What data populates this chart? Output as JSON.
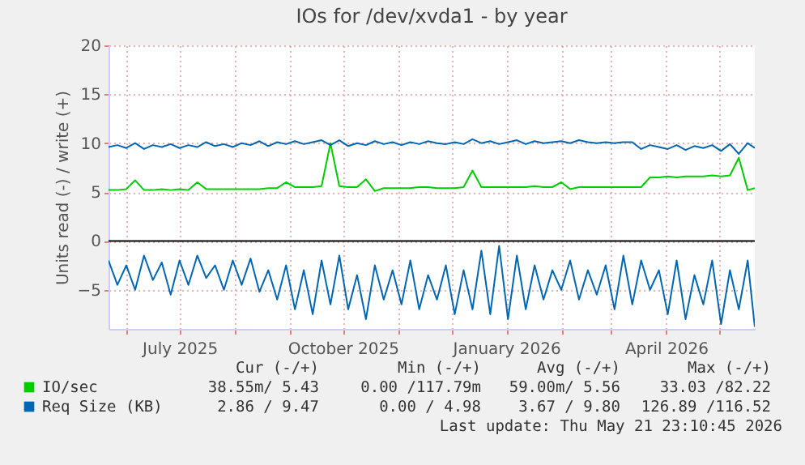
{
  "chart_data": {
    "type": "line",
    "title": "IOs for /dev/xvda1 - by year",
    "ylabel": "Units read (-) / write (+)",
    "x": [
      "2025-05-22",
      "2025-05-27",
      "2025-06-01",
      "2025-06-06",
      "2025-06-11",
      "2025-06-16",
      "2025-06-21",
      "2025-06-26",
      "2025-07-01",
      "2025-07-06",
      "2025-07-11",
      "2025-07-16",
      "2025-07-21",
      "2025-07-26",
      "2025-07-31",
      "2025-08-05",
      "2025-08-10",
      "2025-08-15",
      "2025-08-20",
      "2025-08-25",
      "2025-08-30",
      "2025-09-04",
      "2025-09-09",
      "2025-09-14",
      "2025-09-19",
      "2025-09-24",
      "2025-09-29",
      "2025-10-04",
      "2025-10-09",
      "2025-10-14",
      "2025-10-19",
      "2025-10-24",
      "2025-10-29",
      "2025-11-03",
      "2025-11-08",
      "2025-11-13",
      "2025-11-18",
      "2025-11-23",
      "2025-11-28",
      "2025-12-03",
      "2025-12-08",
      "2025-12-13",
      "2025-12-18",
      "2025-12-23",
      "2025-12-28",
      "2026-01-02",
      "2026-01-07",
      "2026-01-12",
      "2026-01-17",
      "2026-01-22",
      "2026-01-27",
      "2026-02-01",
      "2026-02-06",
      "2026-02-11",
      "2026-02-16",
      "2026-02-21",
      "2026-02-26",
      "2026-03-03",
      "2026-03-08",
      "2026-03-13",
      "2026-03-18",
      "2026-03-23",
      "2026-03-28",
      "2026-04-02",
      "2026-04-07",
      "2026-04-12",
      "2026-04-17",
      "2026-04-22",
      "2026-04-27",
      "2026-05-02",
      "2026-05-07",
      "2026-05-12",
      "2026-05-17",
      "2026-05-21"
    ],
    "series": [
      {
        "name": "IO/sec",
        "color": "#00cc00",
        "values": [
          5.2,
          5.2,
          5.3,
          6.2,
          5.2,
          5.2,
          5.3,
          5.2,
          5.3,
          5.2,
          6.0,
          5.3,
          5.3,
          5.3,
          5.3,
          5.3,
          5.3,
          5.3,
          5.4,
          5.4,
          6.0,
          5.5,
          5.5,
          5.5,
          5.6,
          10.0,
          5.6,
          5.5,
          5.5,
          6.3,
          5.1,
          5.4,
          5.4,
          5.4,
          5.4,
          5.5,
          5.5,
          5.4,
          5.4,
          5.4,
          5.5,
          7.2,
          5.5,
          5.5,
          5.5,
          5.5,
          5.5,
          5.5,
          5.6,
          5.5,
          5.5,
          6.0,
          5.3,
          5.5,
          5.5,
          5.5,
          5.5,
          5.5,
          5.5,
          5.5,
          5.5,
          6.5,
          6.5,
          6.6,
          6.5,
          6.6,
          6.6,
          6.6,
          6.7,
          6.6,
          6.7,
          8.5,
          5.2,
          5.4
        ]
      },
      {
        "name": "Req Size (KB)",
        "color": "#0066b3",
        "values": [
          9.6,
          9.8,
          9.5,
          10.0,
          9.4,
          9.8,
          9.6,
          9.9,
          9.5,
          9.8,
          9.6,
          10.1,
          9.7,
          9.9,
          9.6,
          10.0,
          9.8,
          10.2,
          9.7,
          10.1,
          9.9,
          10.2,
          9.9,
          10.1,
          10.3,
          9.8,
          10.3,
          9.7,
          10.0,
          9.8,
          10.2,
          9.9,
          10.1,
          9.8,
          10.1,
          9.9,
          10.2,
          10.0,
          9.9,
          10.1,
          9.9,
          10.4,
          10.0,
          10.2,
          9.9,
          10.1,
          10.3,
          9.9,
          10.2,
          10.0,
          10.1,
          10.2,
          10.0,
          10.3,
          10.1,
          10.0,
          10.1,
          10.0,
          10.1,
          10.1,
          9.4,
          9.8,
          9.6,
          9.4,
          9.8,
          9.3,
          9.7,
          9.5,
          9.8,
          9.2,
          9.9,
          8.9,
          10.0,
          9.5
        ]
      },
      {
        "color": "#0066b3",
        "values": [
          -2.0,
          -4.5,
          -2.5,
          -5.0,
          -1.5,
          -4.0,
          -2.2,
          -5.5,
          -2.0,
          -4.5,
          -1.5,
          -3.8,
          -2.5,
          -5.0,
          -2.0,
          -4.5,
          -1.8,
          -5.2,
          -3.0,
          -6.0,
          -2.5,
          -7.0,
          -3.0,
          -7.5,
          -2.0,
          -6.5,
          -1.5,
          -7.0,
          -3.5,
          -8.0,
          -2.5,
          -6.0,
          -3.0,
          -6.5,
          -2.0,
          -7.0,
          -3.5,
          -6.0,
          -2.5,
          -7.5,
          -3.0,
          -7.0,
          -1.0,
          -7.5,
          -0.5,
          -8.0,
          -1.5,
          -7.0,
          -2.5,
          -6.0,
          -3.0,
          -5.0,
          -2.0,
          -6.0,
          -3.0,
          -5.5,
          -2.5,
          -7.0,
          -1.5,
          -6.5,
          -2.0,
          -5.0,
          -3.0,
          -7.5,
          -2.0,
          -8.0,
          -3.5,
          -6.5,
          -2.0,
          -8.5,
          -3.0,
          -7.0,
          -2.0,
          -8.8
        ]
      }
    ],
    "xlim": [
      "2025-05-22",
      "2026-05-21"
    ],
    "xticks": [
      {
        "value": "2025-06-01",
        "label": null
      },
      {
        "value": "2025-07-01",
        "label": "July 2025"
      },
      {
        "value": "2025-08-01",
        "label": null
      },
      {
        "value": "2025-09-01",
        "label": null
      },
      {
        "value": "2025-10-01",
        "label": "October 2025"
      },
      {
        "value": "2025-11-01",
        "label": null
      },
      {
        "value": "2025-12-01",
        "label": null
      },
      {
        "value": "2026-01-01",
        "label": "January 2026"
      },
      {
        "value": "2026-02-01",
        "label": null
      },
      {
        "value": "2026-03-01",
        "label": null
      },
      {
        "value": "2026-04-01",
        "label": "April 2026"
      },
      {
        "value": "2026-05-01",
        "label": null
      }
    ],
    "ylim": [
      -9,
      20
    ],
    "yticks": [
      -5,
      0,
      5,
      10,
      15,
      20
    ],
    "ref_lines": [
      {
        "axis": "y",
        "value": 0,
        "color": "#000000"
      }
    ],
    "grid": true,
    "legend": "bottom",
    "annotations": [
      "Cur (-/+)",
      "Min (-/+)",
      "Avg (-/+)",
      "Max (-/+)",
      "38.55m/ 5.43",
      "0.00 /117.79m",
      "59.00m/ 5.56",
      "33.03 /82.22",
      "2.86 / 9.47",
      "0.00 / 4.98",
      "3.67 / 9.80",
      "126.89 /116.52",
      "Last update: Thu May 21 23:10:45 2026"
    ]
  }
}
